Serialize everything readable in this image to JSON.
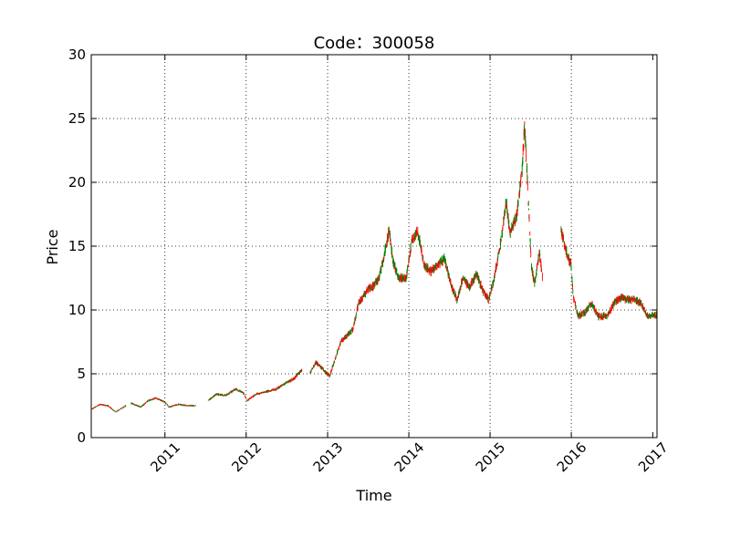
{
  "chart_data": {
    "type": "candlestick",
    "title": "Code：300058",
    "xlabel": "Time",
    "ylabel": "Price",
    "xlim": [
      "2010-02-04",
      "2017-01-20"
    ],
    "ylim": [
      0,
      30
    ],
    "x_ticks": [
      "2011",
      "2012",
      "2013",
      "2014",
      "2015",
      "2016",
      "2017"
    ],
    "y_ticks": [
      "0",
      "5",
      "10",
      "15",
      "20",
      "25",
      "30"
    ],
    "grid": true,
    "colors": {
      "up": "#ff0000",
      "down": "#008000",
      "axis": "#000000",
      "grid": "#000000"
    },
    "series": [
      {
        "values": [
          [
            "2010-02-04",
            2.2
          ],
          [
            "2010-03-15",
            2.6
          ],
          [
            "2010-04-20",
            2.5
          ],
          [
            "2010-05-25",
            2.0
          ],
          [
            "2010-06-20",
            2.3
          ],
          [
            "2010-07-10",
            2.5
          ],
          [
            "2010-07-20",
            null
          ],
          [
            "2010-08-01",
            2.7
          ],
          [
            "2010-09-15",
            2.4
          ],
          [
            "2010-10-20",
            2.9
          ],
          [
            "2010-11-20",
            3.1
          ],
          [
            "2010-12-30",
            2.8
          ],
          [
            "2011-01-20",
            2.4
          ],
          [
            "2011-03-01",
            2.6
          ],
          [
            "2011-04-15",
            2.5
          ],
          [
            "2011-05-20",
            2.5
          ],
          [
            "2011-06-10",
            null
          ],
          [
            "2011-07-15",
            2.9
          ],
          [
            "2011-08-20",
            3.4
          ],
          [
            "2011-10-01",
            3.3
          ],
          [
            "2011-11-15",
            3.8
          ],
          [
            "2011-12-20",
            3.5
          ],
          [
            "2012-01-05",
            2.9
          ],
          [
            "2012-02-15",
            3.4
          ],
          [
            "2012-04-01",
            3.6
          ],
          [
            "2012-05-15",
            3.8
          ],
          [
            "2012-06-20",
            4.2
          ],
          [
            "2012-08-01",
            4.6
          ],
          [
            "2012-09-10",
            5.3
          ],
          [
            "2012-09-20",
            null
          ],
          [
            "2012-10-15",
            5.1
          ],
          [
            "2012-11-10",
            5.9
          ],
          [
            "2012-12-20",
            5.2
          ],
          [
            "2013-01-10",
            4.8
          ],
          [
            "2013-02-01",
            6.0
          ],
          [
            "2013-03-01",
            7.5
          ],
          [
            "2013-03-20",
            7.8
          ],
          [
            "2013-04-25",
            8.5
          ],
          [
            "2013-05-20",
            10.5
          ],
          [
            "2013-06-25",
            11.5
          ],
          [
            "2013-07-20",
            11.8
          ],
          [
            "2013-08-20",
            12.5
          ],
          [
            "2013-09-15",
            14.5
          ],
          [
            "2013-10-05",
            16.3
          ],
          [
            "2013-10-20",
            14.0
          ],
          [
            "2013-11-15",
            12.5
          ],
          [
            "2013-12-20",
            12.5
          ],
          [
            "2014-01-15",
            15.5
          ],
          [
            "2014-02-10",
            16.2
          ],
          [
            "2014-03-10",
            13.5
          ],
          [
            "2014-04-10",
            13.0
          ],
          [
            "2014-05-10",
            13.5
          ],
          [
            "2014-06-10",
            14.0
          ],
          [
            "2014-07-10",
            12.0
          ],
          [
            "2014-08-05",
            10.8
          ],
          [
            "2014-09-01",
            12.5
          ],
          [
            "2014-10-01",
            11.8
          ],
          [
            "2014-11-01",
            12.8
          ],
          [
            "2014-12-01",
            11.5
          ],
          [
            "2014-12-25",
            10.8
          ],
          [
            "2015-01-20",
            12.5
          ],
          [
            "2015-02-20",
            15.5
          ],
          [
            "2015-03-15",
            18.5
          ],
          [
            "2015-04-01",
            16.0
          ],
          [
            "2015-05-01",
            17.5
          ],
          [
            "2015-05-25",
            21.0
          ],
          [
            "2015-06-05",
            24.5
          ],
          [
            "2015-06-20",
            19.5
          ],
          [
            "2015-07-05",
            13.5
          ],
          [
            "2015-07-20",
            12.0
          ],
          [
            "2015-08-10",
            14.5
          ],
          [
            "2015-08-25",
            12.5
          ],
          [
            "2015-09-10",
            null
          ],
          [
            "2015-11-15",
            16.5
          ],
          [
            "2015-12-10",
            14.5
          ],
          [
            "2015-12-31",
            13.5
          ],
          [
            "2016-01-10",
            11.0
          ],
          [
            "2016-02-01",
            9.5
          ],
          [
            "2016-03-01",
            9.8
          ],
          [
            "2016-04-01",
            10.5
          ],
          [
            "2016-05-01",
            9.5
          ],
          [
            "2016-06-10",
            9.5
          ],
          [
            "2016-07-10",
            10.5
          ],
          [
            "2016-08-10",
            11.0
          ],
          [
            "2016-09-10",
            10.8
          ],
          [
            "2016-10-10",
            10.8
          ],
          [
            "2016-11-10",
            10.5
          ],
          [
            "2016-12-10",
            9.5
          ],
          [
            "2017-01-20",
            9.6
          ]
        ]
      }
    ]
  }
}
